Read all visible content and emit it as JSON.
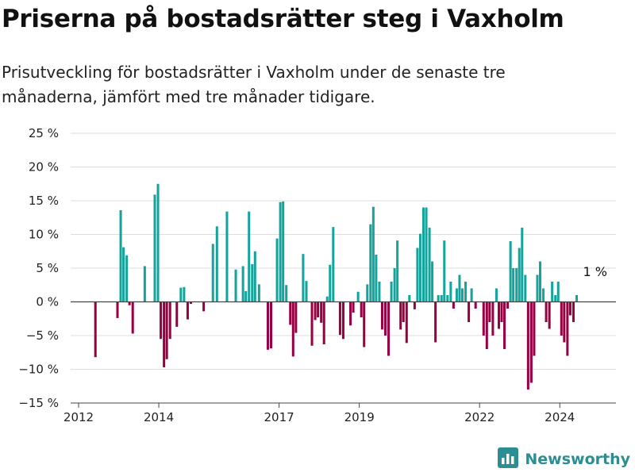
{
  "title": "Priserna på bostadsrätter steg i Vaxholm",
  "subtitle": "Prisutveckling för bostadsrätter i Vaxholm under de senaste tre månaderna, jämfört med tre månader tidigare.",
  "brand": {
    "name": "Newsworthy",
    "icon": "bar-chart-logo-icon"
  },
  "colors": {
    "positive": "#16a39c",
    "negative": "#990043",
    "grid": "#dddddd",
    "axis": "#444444"
  },
  "chart_data": {
    "type": "bar",
    "ylim": [
      -15,
      25
    ],
    "y_ticks": [
      25,
      20,
      15,
      10,
      5,
      0,
      -5,
      -10,
      -15
    ],
    "y_tick_labels": [
      "25 %",
      "20 %",
      "15 %",
      "10 %",
      "5 %",
      "0 %",
      "−5 %",
      "−10 %",
      "−15 %"
    ],
    "x_ticks": [
      2012,
      2014,
      2017,
      2019,
      2022,
      2024
    ],
    "x_tick_labels": [
      "2012",
      "2014",
      "2017",
      "2019",
      "2022",
      "2024"
    ],
    "xlim": [
      2012.0,
      2025.4
    ],
    "bar_width_years": 0.06,
    "grid": true,
    "annotation": {
      "text": "1 %",
      "x": 2024.88,
      "y": 1
    },
    "points": [
      {
        "x": 2012.42,
        "y": -8.2
      },
      {
        "x": 2012.97,
        "y": -2.4
      },
      {
        "x": 2013.05,
        "y": 13.6
      },
      {
        "x": 2013.12,
        "y": 8.1
      },
      {
        "x": 2013.2,
        "y": 6.9
      },
      {
        "x": 2013.27,
        "y": -0.5
      },
      {
        "x": 2013.35,
        "y": -4.7
      },
      {
        "x": 2013.65,
        "y": 5.3
      },
      {
        "x": 2013.9,
        "y": 15.9
      },
      {
        "x": 2013.98,
        "y": 17.5
      },
      {
        "x": 2014.05,
        "y": -5.5
      },
      {
        "x": 2014.13,
        "y": -9.7
      },
      {
        "x": 2014.2,
        "y": -8.5
      },
      {
        "x": 2014.28,
        "y": -5.5
      },
      {
        "x": 2014.45,
        "y": -3.7
      },
      {
        "x": 2014.55,
        "y": 2.1
      },
      {
        "x": 2014.63,
        "y": 2.2
      },
      {
        "x": 2014.72,
        "y": -2.6
      },
      {
        "x": 2014.8,
        "y": -0.3
      },
      {
        "x": 2015.12,
        "y": -1.4
      },
      {
        "x": 2015.35,
        "y": 8.6
      },
      {
        "x": 2015.45,
        "y": 11.2
      },
      {
        "x": 2015.7,
        "y": 13.4
      },
      {
        "x": 2015.92,
        "y": 4.8
      },
      {
        "x": 2016.1,
        "y": 5.3
      },
      {
        "x": 2016.17,
        "y": 1.6
      },
      {
        "x": 2016.25,
        "y": 13.4
      },
      {
        "x": 2016.33,
        "y": 5.6
      },
      {
        "x": 2016.4,
        "y": 7.5
      },
      {
        "x": 2016.5,
        "y": 2.6
      },
      {
        "x": 2016.72,
        "y": -7.1
      },
      {
        "x": 2016.8,
        "y": -6.9
      },
      {
        "x": 2016.95,
        "y": 9.4
      },
      {
        "x": 2017.03,
        "y": 14.8
      },
      {
        "x": 2017.1,
        "y": 14.9
      },
      {
        "x": 2017.18,
        "y": 2.5
      },
      {
        "x": 2017.28,
        "y": -3.4
      },
      {
        "x": 2017.35,
        "y": -8.1
      },
      {
        "x": 2017.42,
        "y": -4.6
      },
      {
        "x": 2017.6,
        "y": 7.1
      },
      {
        "x": 2017.68,
        "y": 3.1
      },
      {
        "x": 2017.82,
        "y": -6.5
      },
      {
        "x": 2017.9,
        "y": -2.7
      },
      {
        "x": 2017.97,
        "y": -2.3
      },
      {
        "x": 2018.05,
        "y": -3.1
      },
      {
        "x": 2018.12,
        "y": -6.3
      },
      {
        "x": 2018.2,
        "y": 0.8
      },
      {
        "x": 2018.27,
        "y": 5.5
      },
      {
        "x": 2018.35,
        "y": 11.1
      },
      {
        "x": 2018.52,
        "y": -4.9
      },
      {
        "x": 2018.6,
        "y": -5.5
      },
      {
        "x": 2018.78,
        "y": -3.5
      },
      {
        "x": 2018.85,
        "y": -1.6
      },
      {
        "x": 2018.97,
        "y": 1.5
      },
      {
        "x": 2019.05,
        "y": -2.3
      },
      {
        "x": 2019.12,
        "y": -6.7
      },
      {
        "x": 2019.2,
        "y": 2.6
      },
      {
        "x": 2019.28,
        "y": 11.5
      },
      {
        "x": 2019.35,
        "y": 14.1
      },
      {
        "x": 2019.42,
        "y": 7.0
      },
      {
        "x": 2019.5,
        "y": 3.0
      },
      {
        "x": 2019.57,
        "y": -4.1
      },
      {
        "x": 2019.65,
        "y": -5.0
      },
      {
        "x": 2019.73,
        "y": -8.0
      },
      {
        "x": 2019.8,
        "y": 3.0
      },
      {
        "x": 2019.88,
        "y": 5.0
      },
      {
        "x": 2019.95,
        "y": 9.1
      },
      {
        "x": 2020.03,
        "y": -4.1
      },
      {
        "x": 2020.1,
        "y": -3.0
      },
      {
        "x": 2020.18,
        "y": -6.1
      },
      {
        "x": 2020.25,
        "y": 1.0
      },
      {
        "x": 2020.38,
        "y": -1.1
      },
      {
        "x": 2020.45,
        "y": 8.0
      },
      {
        "x": 2020.52,
        "y": 10.1
      },
      {
        "x": 2020.6,
        "y": 14.0
      },
      {
        "x": 2020.67,
        "y": 14.0
      },
      {
        "x": 2020.75,
        "y": 11.0
      },
      {
        "x": 2020.82,
        "y": 6.0
      },
      {
        "x": 2020.9,
        "y": -6.0
      },
      {
        "x": 2020.97,
        "y": 1.0
      },
      {
        "x": 2021.05,
        "y": 1.0
      },
      {
        "x": 2021.12,
        "y": 9.1
      },
      {
        "x": 2021.2,
        "y": 1.0
      },
      {
        "x": 2021.28,
        "y": 3.0
      },
      {
        "x": 2021.35,
        "y": -1.0
      },
      {
        "x": 2021.43,
        "y": 2.0
      },
      {
        "x": 2021.5,
        "y": 4.0
      },
      {
        "x": 2021.57,
        "y": 2.0
      },
      {
        "x": 2021.65,
        "y": 3.0
      },
      {
        "x": 2021.73,
        "y": -3.0
      },
      {
        "x": 2021.8,
        "y": 2.0
      },
      {
        "x": 2021.9,
        "y": -1.0
      },
      {
        "x": 2022.1,
        "y": -5.0
      },
      {
        "x": 2022.18,
        "y": -7.0
      },
      {
        "x": 2022.25,
        "y": -3.0
      },
      {
        "x": 2022.33,
        "y": -5.0
      },
      {
        "x": 2022.42,
        "y": 2.0
      },
      {
        "x": 2022.48,
        "y": -4.0
      },
      {
        "x": 2022.55,
        "y": -3.0
      },
      {
        "x": 2022.62,
        "y": -7.0
      },
      {
        "x": 2022.7,
        "y": -1.0
      },
      {
        "x": 2022.77,
        "y": 9.0
      },
      {
        "x": 2022.84,
        "y": 5.0
      },
      {
        "x": 2022.92,
        "y": 5.0
      },
      {
        "x": 2022.99,
        "y": 8.0
      },
      {
        "x": 2023.06,
        "y": 11.0
      },
      {
        "x": 2023.14,
        "y": 4.0
      },
      {
        "x": 2023.21,
        "y": -13.0
      },
      {
        "x": 2023.29,
        "y": -12.0
      },
      {
        "x": 2023.36,
        "y": -8.0
      },
      {
        "x": 2023.44,
        "y": 4.0
      },
      {
        "x": 2023.51,
        "y": 6.0
      },
      {
        "x": 2023.59,
        "y": 2.0
      },
      {
        "x": 2023.66,
        "y": -3.0
      },
      {
        "x": 2023.74,
        "y": -4.0
      },
      {
        "x": 2023.81,
        "y": 3.0
      },
      {
        "x": 2023.89,
        "y": 1.0
      },
      {
        "x": 2023.96,
        "y": 3.0
      },
      {
        "x": 2024.04,
        "y": -5.0
      },
      {
        "x": 2024.11,
        "y": -6.0
      },
      {
        "x": 2024.19,
        "y": -8.0
      },
      {
        "x": 2024.26,
        "y": -2.0
      },
      {
        "x": 2024.34,
        "y": -3.0
      },
      {
        "x": 2024.42,
        "y": 1.0
      }
    ]
  }
}
